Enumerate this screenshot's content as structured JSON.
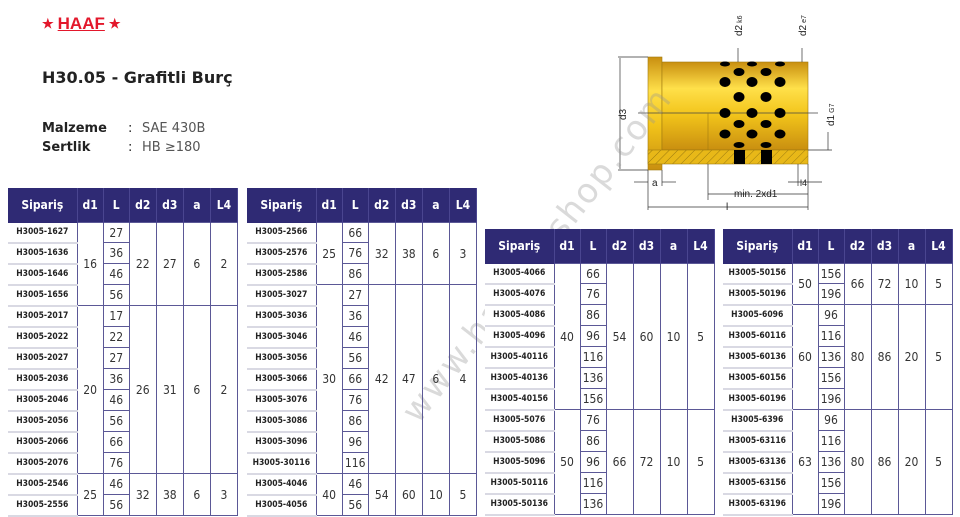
{
  "brand": {
    "name": "HAAF",
    "star": "★"
  },
  "title": "H30.05 - Grafitli Burç",
  "specs": [
    {
      "label": "Malzeme",
      "sep": ":",
      "value": "SAE 430B"
    },
    {
      "label": "Sertlik",
      "sep": ":",
      "value": "HB ≥180"
    }
  ],
  "watermark": "www.haksanshop.com",
  "diagram": {
    "labels": {
      "d2k6": "d2",
      "d2k6_sub": "k6",
      "d2e7": "d2",
      "d2e7_sub": "e7",
      "d3": "d3",
      "d1": "d1",
      "d1_sub": "G7",
      "a": "a",
      "l4": "l4",
      "min": "min. 2xd1",
      "l": "l"
    },
    "colors": {
      "body": "#f2c41a",
      "holes": "#000000"
    }
  },
  "columns": [
    "Sipariş",
    "d1",
    "L",
    "d2",
    "d3",
    "a",
    "L4"
  ],
  "colors": {
    "header_bg": "#2f2a74",
    "border": "#5b5896",
    "brand": "#e3172b"
  },
  "tables": [
    {
      "groups": [
        {
          "d1": "16",
          "d2": "22",
          "d3": "27",
          "a": "6",
          "L4": "2",
          "rows": [
            [
              "H3005-1627",
              "27"
            ],
            [
              "H3005-1636",
              "36"
            ],
            [
              "H3005-1646",
              "46"
            ],
            [
              "H3005-1656",
              "56"
            ]
          ]
        },
        {
          "d1": "20",
          "d2": "26",
          "d3": "31",
          "a": "6",
          "L4": "2",
          "rows": [
            [
              "H3005-2017",
              "17"
            ],
            [
              "H3005-2022",
              "22"
            ],
            [
              "H3005-2027",
              "27"
            ],
            [
              "H3005-2036",
              "36"
            ],
            [
              "H3005-2046",
              "46"
            ],
            [
              "H3005-2056",
              "56"
            ],
            [
              "H3005-2066",
              "66"
            ],
            [
              "H3005-2076",
              "76"
            ]
          ]
        },
        {
          "d1": "25",
          "d2": "32",
          "d3": "38",
          "a": "6",
          "L4": "3",
          "rows": [
            [
              "H3005-2546",
              "46"
            ],
            [
              "H3005-2556",
              "56"
            ]
          ]
        }
      ]
    },
    {
      "groups": [
        {
          "d1": "25",
          "d2": "32",
          "d3": "38",
          "a": "6",
          "L4": "3",
          "rows": [
            [
              "H3005-2566",
              "66"
            ],
            [
              "H3005-2576",
              "76"
            ],
            [
              "H3005-2586",
              "86"
            ]
          ]
        },
        {
          "d1": "30",
          "d2": "42",
          "d3": "47",
          "a": "6",
          "L4": "4",
          "rows": [
            [
              "H3005-3027",
              "27"
            ],
            [
              "H3005-3036",
              "36"
            ],
            [
              "H3005-3046",
              "46"
            ],
            [
              "H3005-3056",
              "56"
            ],
            [
              "H3005-3066",
              "66"
            ],
            [
              "H3005-3076",
              "76"
            ],
            [
              "H3005-3086",
              "86"
            ],
            [
              "H3005-3096",
              "96"
            ],
            [
              "H3005-30116",
              "116"
            ]
          ]
        },
        {
          "d1": "40",
          "d2": "54",
          "d3": "60",
          "a": "10",
          "L4": "5",
          "rows": [
            [
              "H3005-4046",
              "46"
            ],
            [
              "H3005-4056",
              "56"
            ]
          ]
        }
      ]
    },
    {
      "groups": [
        {
          "d1": "40",
          "d2": "54",
          "d3": "60",
          "a": "10",
          "L4": "5",
          "rows": [
            [
              "H3005-4066",
              "66"
            ],
            [
              "H3005-4076",
              "76"
            ],
            [
              "H3005-4086",
              "86"
            ],
            [
              "H3005-4096",
              "96"
            ],
            [
              "H3005-40116",
              "116"
            ],
            [
              "H3005-40136",
              "136"
            ],
            [
              "H3005-40156",
              "156"
            ]
          ]
        },
        {
          "d1": "50",
          "d2": "66",
          "d3": "72",
          "a": "10",
          "L4": "5",
          "rows": [
            [
              "H3005-5076",
              "76"
            ],
            [
              "H3005-5086",
              "86"
            ],
            [
              "H3005-5096",
              "96"
            ],
            [
              "H3005-50116",
              "116"
            ],
            [
              "H3005-50136",
              "136"
            ]
          ]
        }
      ]
    },
    {
      "groups": [
        {
          "d1": "50",
          "d2": "66",
          "d3": "72",
          "a": "10",
          "L4": "5",
          "rows": [
            [
              "H3005-50156",
              "156"
            ],
            [
              "H3005-50196",
              "196"
            ]
          ]
        },
        {
          "d1": "60",
          "d2": "80",
          "d3": "86",
          "a": "20",
          "L4": "5",
          "rows": [
            [
              "H3005-6096",
              "96"
            ],
            [
              "H3005-60116",
              "116"
            ],
            [
              "H3005-60136",
              "136"
            ],
            [
              "H3005-60156",
              "156"
            ],
            [
              "H3005-60196",
              "196"
            ]
          ]
        },
        {
          "d1": "63",
          "d2": "80",
          "d3": "86",
          "a": "20",
          "L4": "5",
          "rows": [
            [
              "H3005-6396",
              "96"
            ],
            [
              "H3005-63116",
              "116"
            ],
            [
              "H3005-63136",
              "136"
            ],
            [
              "H3005-63156",
              "156"
            ],
            [
              "H3005-63196",
              "196"
            ]
          ]
        }
      ]
    }
  ]
}
